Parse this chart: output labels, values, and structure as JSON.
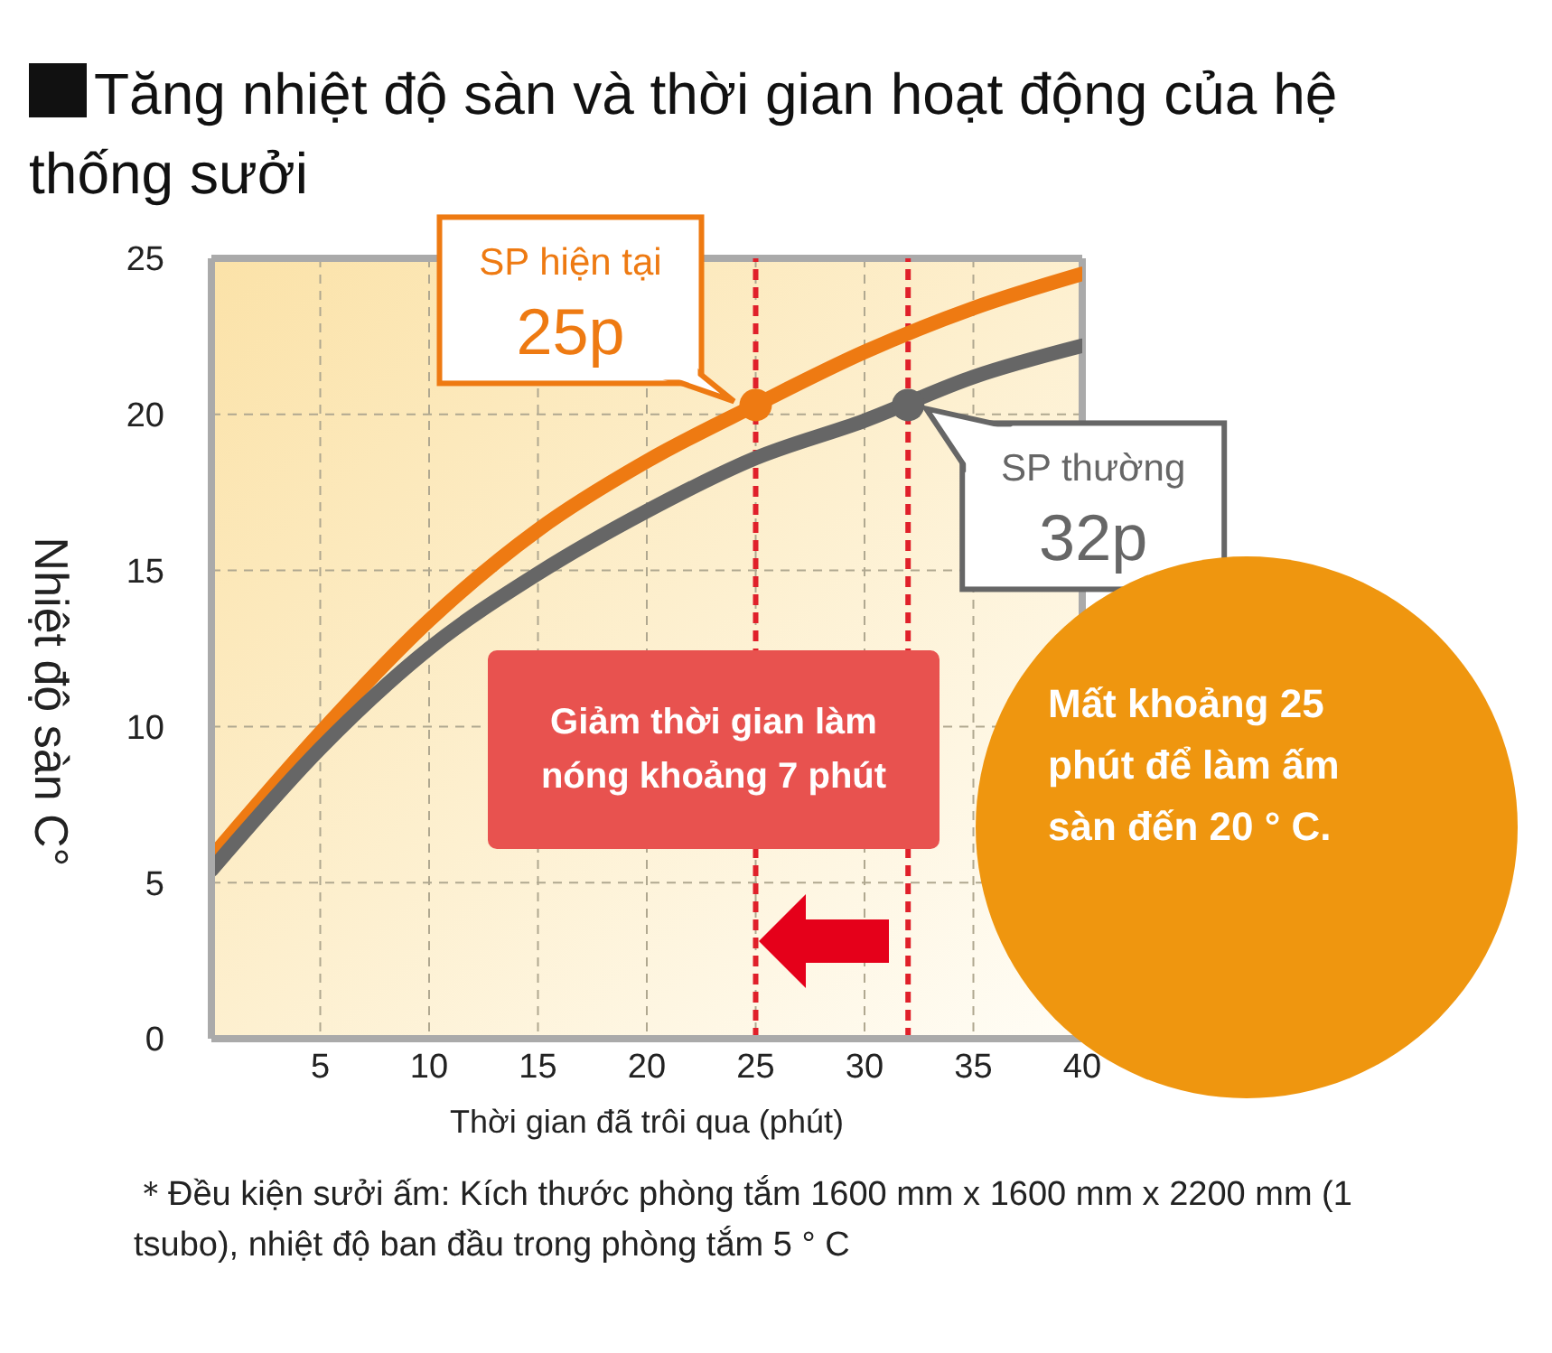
{
  "chart_data": {
    "type": "line",
    "title": "Tăng nhiệt độ sàn và thời gian hoạt động của hệ thống sưởi",
    "xlabel": "Thời gian đã trôi qua (phút)",
    "ylabel": "Nhiệt độ sàn C°",
    "x": [
      0,
      5,
      10,
      15,
      20,
      25,
      30,
      35,
      40
    ],
    "series": [
      {
        "color": "#ee7a12",
        "values": [
          5.8,
          9.8,
          13.4,
          16.3,
          18.5,
          20.3,
          22.0,
          23.4,
          24.5
        ]
      },
      {
        "color": "#666666",
        "values": [
          5.4,
          9.3,
          12.5,
          14.9,
          16.9,
          18.6,
          19.8,
          21.2,
          22.2
        ]
      }
    ],
    "xlim": [
      0,
      40
    ],
    "xticks": [
      5,
      10,
      15,
      20,
      25,
      30,
      35,
      40
    ],
    "ylim": [
      0,
      25
    ],
    "yticks": [
      0,
      5,
      10,
      15,
      20,
      25
    ],
    "grid": true,
    "legend": false,
    "marker": "none",
    "line_style": "solid",
    "ref_lines": [
      {
        "axis": "x",
        "value": 25,
        "color": "#e0202a",
        "line_style": "dashed"
      },
      {
        "axis": "x",
        "value": 32,
        "color": "#e0202a",
        "line_style": "dashed"
      }
    ],
    "annotations": [
      {
        "text": "SP hiện tại\n25p",
        "x": 25,
        "y": 20.3
      },
      {
        "text": "SP thường\n32p",
        "x": 32,
        "y": 20.3
      },
      "Giảm thời gian làm nóng khoảng 7 phút",
      "Mất khoảng 25 phút để làm ấm sàn đến 20 ° C.",
      "＊Đều kiện sưởi ấm: Kích thước phòng tắm 1600 mm x 1600 mm x 2200 mm (1 tsubo), nhiệt độ ban đầu trong phòng tắm 5 ° C"
    ]
  }
}
